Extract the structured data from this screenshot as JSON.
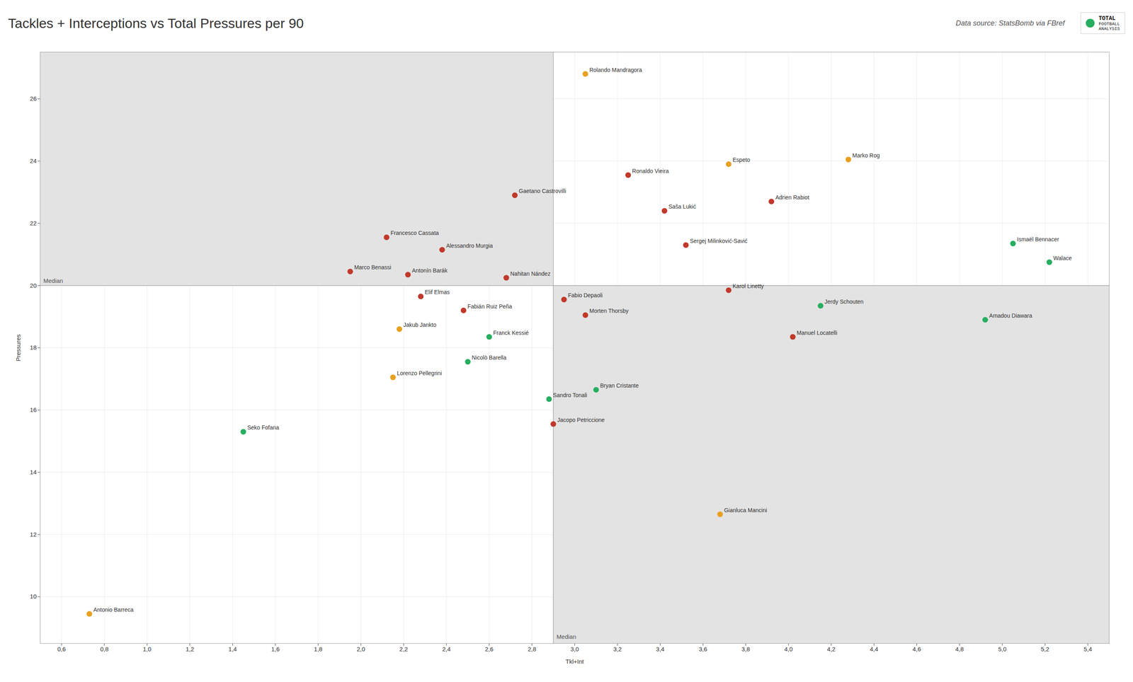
{
  "chart_data": {
    "type": "scatter",
    "title": "Tackles + Interceptions vs Total Pressures per 90",
    "xlabel": "Tkl+Int",
    "ylabel": "Pressures",
    "source": "Data source: StatsBomb via FBref",
    "logo": [
      "TOTAL",
      "FOOTBALL",
      "ANALYSIS"
    ],
    "xlim": [
      0.5,
      5.5
    ],
    "ylim": [
      8.5,
      27.5
    ],
    "xticks": [
      {
        "value": 0.6,
        "label": "0,6"
      },
      {
        "value": 0.8,
        "label": "0,8"
      },
      {
        "value": 1.0,
        "label": "1,0"
      },
      {
        "value": 1.2,
        "label": "1,2"
      },
      {
        "value": 1.4,
        "label": "1,4"
      },
      {
        "value": 1.6,
        "label": "1,6"
      },
      {
        "value": 1.8,
        "label": "1,8"
      },
      {
        "value": 2.0,
        "label": "2,0"
      },
      {
        "value": 2.2,
        "label": "2,2"
      },
      {
        "value": 2.4,
        "label": "2,4"
      },
      {
        "value": 2.6,
        "label": "2,6"
      },
      {
        "value": 2.8,
        "label": "2,8"
      },
      {
        "value": 3.0,
        "label": "3,0"
      },
      {
        "value": 3.2,
        "label": "3,2"
      },
      {
        "value": 3.4,
        "label": "3,4"
      },
      {
        "value": 3.6,
        "label": "3,6"
      },
      {
        "value": 3.8,
        "label": "3,8"
      },
      {
        "value": 4.0,
        "label": "4,0"
      },
      {
        "value": 4.2,
        "label": "4,2"
      },
      {
        "value": 4.4,
        "label": "4,4"
      },
      {
        "value": 4.6,
        "label": "4,6"
      },
      {
        "value": 4.8,
        "label": "4,8"
      },
      {
        "value": 5.0,
        "label": "5,0"
      },
      {
        "value": 5.2,
        "label": "5,2"
      },
      {
        "value": 5.4,
        "label": "5,4"
      }
    ],
    "yticks": [
      10,
      12,
      14,
      16,
      18,
      20,
      22,
      24,
      26
    ],
    "grid": true,
    "median_lines": [
      {
        "axis": "y",
        "value": 20.0,
        "label": "Median"
      },
      {
        "axis": "x",
        "value": 2.9,
        "label": "Median"
      }
    ],
    "points": [
      {
        "name": "Rolando Mandragora",
        "x": 3.05,
        "y": 26.8,
        "color": "#e8a020"
      },
      {
        "name": "Marko Rog",
        "x": 4.28,
        "y": 24.05,
        "color": "#e8a020"
      },
      {
        "name": "Espeto",
        "x": 3.72,
        "y": 23.9,
        "color": "#e8a020"
      },
      {
        "name": "Ronaldo Vieira",
        "x": 3.25,
        "y": 23.55,
        "color": "#c0392b"
      },
      {
        "name": "Adrien Rabiot",
        "x": 3.92,
        "y": 22.7,
        "color": "#c0392b"
      },
      {
        "name": "Gaetano Castrovilli",
        "x": 2.72,
        "y": 22.9,
        "color": "#c0392b"
      },
      {
        "name": "Saša Lukić",
        "x": 3.42,
        "y": 22.4,
        "color": "#c0392b"
      },
      {
        "name": "Francesco Cassata",
        "x": 2.12,
        "y": 21.55,
        "color": "#c0392b"
      },
      {
        "name": "Alessandro Murgia",
        "x": 2.38,
        "y": 21.15,
        "color": "#c0392b"
      },
      {
        "name": "Ismaël Bennacer",
        "x": 5.05,
        "y": 21.35,
        "color": "#27ae60"
      },
      {
        "name": "Walace",
        "x": 5.22,
        "y": 20.75,
        "color": "#27ae60"
      },
      {
        "name": "Sergej Milinković-Savić",
        "x": 3.52,
        "y": 21.3,
        "color": "#c0392b"
      },
      {
        "name": "Marco Benassi",
        "x": 1.95,
        "y": 20.45,
        "color": "#c0392b"
      },
      {
        "name": "Antonín Barák",
        "x": 2.22,
        "y": 20.35,
        "color": "#c0392b"
      },
      {
        "name": "Nahitan Nández",
        "x": 2.68,
        "y": 20.25,
        "color": "#c0392b"
      },
      {
        "name": "Elif Elmas",
        "x": 2.28,
        "y": 19.65,
        "color": "#c0392b"
      },
      {
        "name": "Fabio Depaoli",
        "x": 2.95,
        "y": 19.55,
        "color": "#c0392b"
      },
      {
        "name": "Fabián Ruiz Peña",
        "x": 2.48,
        "y": 19.2,
        "color": "#c0392b"
      },
      {
        "name": "Morten Thorsby",
        "x": 3.05,
        "y": 19.05,
        "color": "#c0392b"
      },
      {
        "name": "Karol Linetty",
        "x": 3.72,
        "y": 19.85,
        "color": "#c0392b"
      },
      {
        "name": "Jerdy Schouten",
        "x": 4.15,
        "y": 19.35,
        "color": "#27ae60"
      },
      {
        "name": "Amadou Diawara",
        "x": 4.92,
        "y": 18.9,
        "color": "#27ae60"
      },
      {
        "name": "Manuel Locatelli",
        "x": 4.02,
        "y": 18.35,
        "color": "#c0392b"
      },
      {
        "name": "Jakub Jankto",
        "x": 2.18,
        "y": 18.6,
        "color": "#e8a020"
      },
      {
        "name": "Franck Kessié",
        "x": 2.6,
        "y": 18.35,
        "color": "#27ae60"
      },
      {
        "name": "Nicolò Barella",
        "x": 2.5,
        "y": 17.55,
        "color": "#27ae60"
      },
      {
        "name": "Lorenzo Pellegrini",
        "x": 2.15,
        "y": 17.05,
        "color": "#e8a020"
      },
      {
        "name": "Bryan Cristante",
        "x": 3.1,
        "y": 16.65,
        "color": "#27ae60"
      },
      {
        "name": "Sandro Tonali",
        "x": 2.88,
        "y": 16.35,
        "color": "#27ae60"
      },
      {
        "name": "Jacopo Petriccione",
        "x": 2.9,
        "y": 15.55,
        "color": "#c0392b"
      },
      {
        "name": "Seko Fofana",
        "x": 1.45,
        "y": 15.3,
        "color": "#27ae60"
      },
      {
        "name": "Gianluca Mancini",
        "x": 3.68,
        "y": 12.65,
        "color": "#e8a020"
      },
      {
        "name": "Antonio Barreca",
        "x": 0.73,
        "y": 9.45,
        "color": "#e8a020"
      }
    ]
  }
}
